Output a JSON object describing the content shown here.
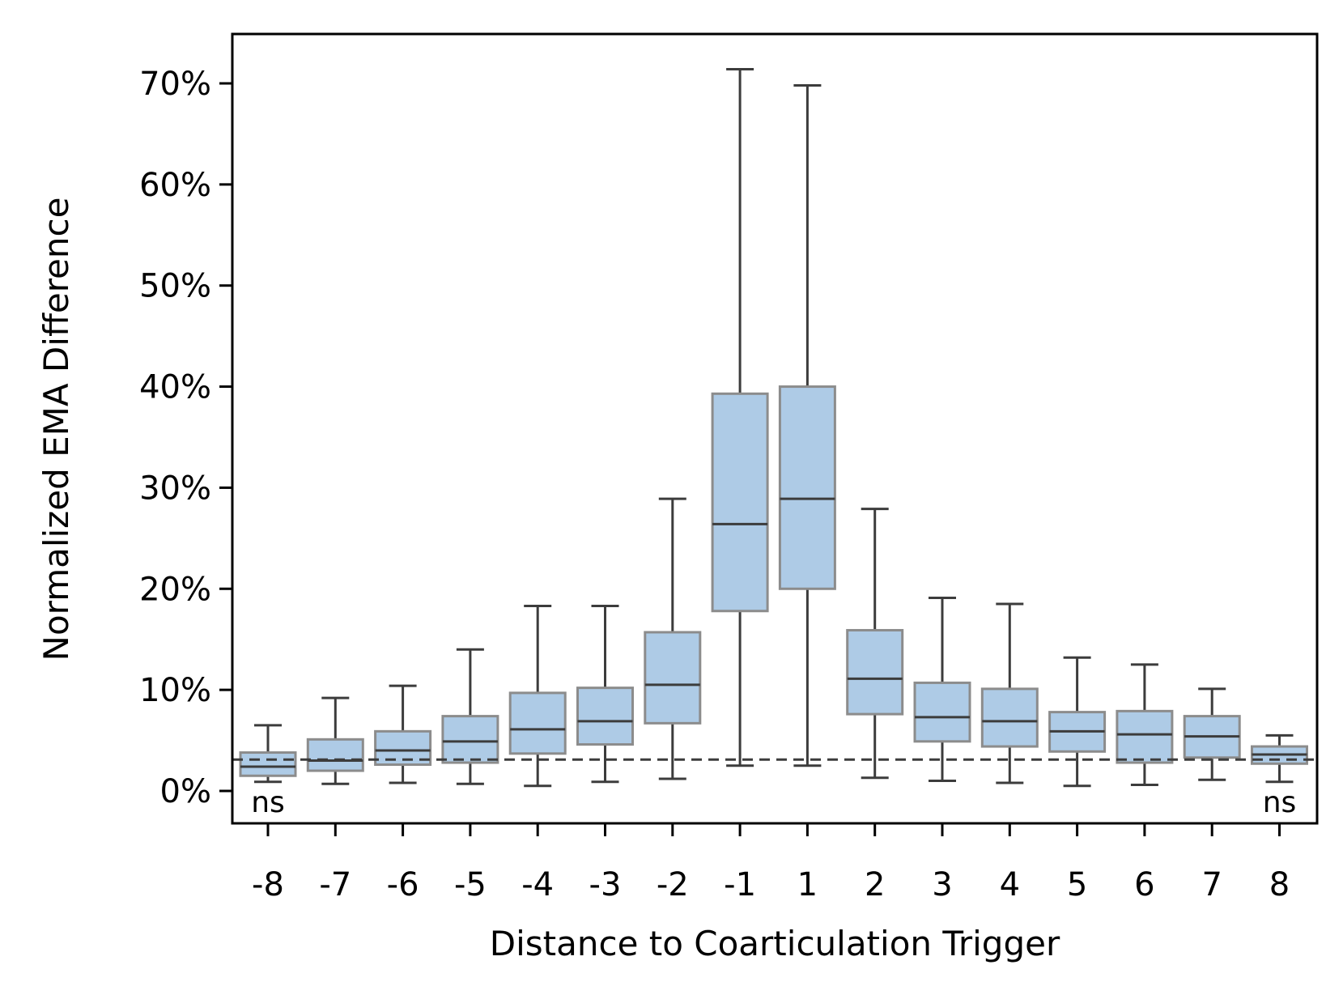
{
  "chart_data": {
    "type": "boxplot",
    "title": "",
    "xlabel": "Distance to Coarticulation Trigger",
    "ylabel": "Normalized EMA Difference",
    "ylim": [
      -3,
      75
    ],
    "yticks": [
      0,
      10,
      20,
      30,
      40,
      50,
      60,
      70
    ],
    "ytick_labels": [
      "0%",
      "10%",
      "20%",
      "30%",
      "40%",
      "50%",
      "60%",
      "70%"
    ],
    "reference_line": {
      "value": 3.1,
      "style": "dashed"
    },
    "box_color": "#aecbe6",
    "box_edge_color": "#8c8c8c",
    "line_color": "#3c3c3c",
    "categories": [
      "-8",
      "-7",
      "-6",
      "-5",
      "-4",
      "-3",
      "-2",
      "-1",
      "1",
      "2",
      "3",
      "4",
      "5",
      "6",
      "7",
      "8"
    ],
    "boxes": [
      {
        "label": "-8",
        "whisker_low": 0.9,
        "q1": 1.5,
        "median": 2.4,
        "q3": 3.8,
        "whisker_high": 6.5,
        "annotation": "ns"
      },
      {
        "label": "-7",
        "whisker_low": 0.7,
        "q1": 2.0,
        "median": 3.0,
        "q3": 5.1,
        "whisker_high": 9.2,
        "annotation": ""
      },
      {
        "label": "-6",
        "whisker_low": 0.8,
        "q1": 2.6,
        "median": 4.0,
        "q3": 5.9,
        "whisker_high": 10.4,
        "annotation": ""
      },
      {
        "label": "-5",
        "whisker_low": 0.7,
        "q1": 2.8,
        "median": 4.9,
        "q3": 7.4,
        "whisker_high": 14.0,
        "annotation": ""
      },
      {
        "label": "-4",
        "whisker_low": 0.5,
        "q1": 3.7,
        "median": 6.1,
        "q3": 9.7,
        "whisker_high": 18.3,
        "annotation": ""
      },
      {
        "label": "-3",
        "whisker_low": 0.9,
        "q1": 4.6,
        "median": 6.9,
        "q3": 10.2,
        "whisker_high": 18.3,
        "annotation": ""
      },
      {
        "label": "-2",
        "whisker_low": 1.2,
        "q1": 6.7,
        "median": 10.5,
        "q3": 15.7,
        "whisker_high": 28.9,
        "annotation": ""
      },
      {
        "label": "-1",
        "whisker_low": 2.5,
        "q1": 17.8,
        "median": 26.4,
        "q3": 39.3,
        "whisker_high": 71.4,
        "annotation": ""
      },
      {
        "label": "1",
        "whisker_low": 2.5,
        "q1": 20.0,
        "median": 28.9,
        "q3": 40.0,
        "whisker_high": 69.8,
        "annotation": ""
      },
      {
        "label": "2",
        "whisker_low": 1.3,
        "q1": 7.6,
        "median": 11.1,
        "q3": 15.9,
        "whisker_high": 27.9,
        "annotation": ""
      },
      {
        "label": "3",
        "whisker_low": 1.0,
        "q1": 4.9,
        "median": 7.3,
        "q3": 10.7,
        "whisker_high": 19.1,
        "annotation": ""
      },
      {
        "label": "4",
        "whisker_low": 0.8,
        "q1": 4.4,
        "median": 6.9,
        "q3": 10.1,
        "whisker_high": 18.5,
        "annotation": ""
      },
      {
        "label": "5",
        "whisker_low": 0.5,
        "q1": 3.9,
        "median": 5.9,
        "q3": 7.8,
        "whisker_high": 13.2,
        "annotation": ""
      },
      {
        "label": "6",
        "whisker_low": 0.6,
        "q1": 2.8,
        "median": 5.6,
        "q3": 7.9,
        "whisker_high": 12.5,
        "annotation": ""
      },
      {
        "label": "7",
        "whisker_low": 1.1,
        "q1": 3.3,
        "median": 5.4,
        "q3": 7.4,
        "whisker_high": 10.1,
        "annotation": ""
      },
      {
        "label": "8",
        "whisker_low": 0.9,
        "q1": 2.7,
        "median": 3.6,
        "q3": 4.4,
        "whisker_high": 5.5,
        "annotation": "ns"
      }
    ]
  }
}
